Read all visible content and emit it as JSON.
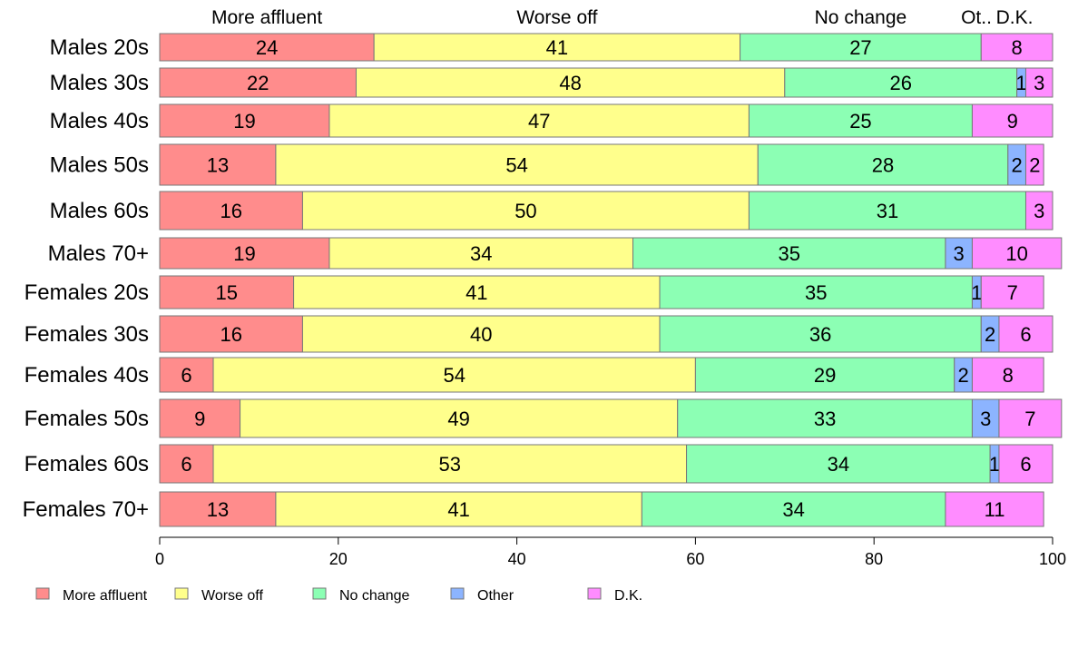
{
  "chart_data": {
    "type": "bar",
    "orientation": "horizontal",
    "stacked": true,
    "categories": [
      "Males 20s",
      "Males 30s",
      "Males 40s",
      "Males 50s",
      "Males 60s",
      "Males 70+",
      "Females 20s",
      "Females 30s",
      "Females 40s",
      "Females 50s",
      "Females 60s",
      "Females 70+"
    ],
    "series": [
      {
        "name": "More affluent",
        "color": "#ff8c8c",
        "values": [
          24,
          22,
          19,
          13,
          16,
          19,
          15,
          16,
          6,
          9,
          6,
          13
        ]
      },
      {
        "name": "Worse off",
        "color": "#ffff8c",
        "values": [
          41,
          48,
          47,
          54,
          50,
          34,
          41,
          40,
          54,
          49,
          53,
          41
        ]
      },
      {
        "name": "No change",
        "color": "#8cffb4",
        "values": [
          27,
          26,
          25,
          28,
          31,
          35,
          35,
          36,
          29,
          33,
          34,
          34
        ]
      },
      {
        "name": "Other",
        "color": "#8cb4ff",
        "values": [
          0,
          1,
          0,
          2,
          0,
          3,
          1,
          2,
          2,
          3,
          1,
          0
        ]
      },
      {
        "name": "D.K.",
        "color": "#ff8cff",
        "values": [
          8,
          3,
          9,
          2,
          3,
          10,
          7,
          6,
          8,
          7,
          6,
          11
        ]
      }
    ],
    "column_headers": [
      "More affluent",
      "Worse off",
      "No change",
      "Ot..",
      "D.K."
    ],
    "x_ticks": [
      "0",
      "20",
      "40",
      "60",
      "80",
      "100"
    ],
    "xlim": [
      0,
      100
    ],
    "grid": false,
    "legend_position": "bottom-left"
  }
}
